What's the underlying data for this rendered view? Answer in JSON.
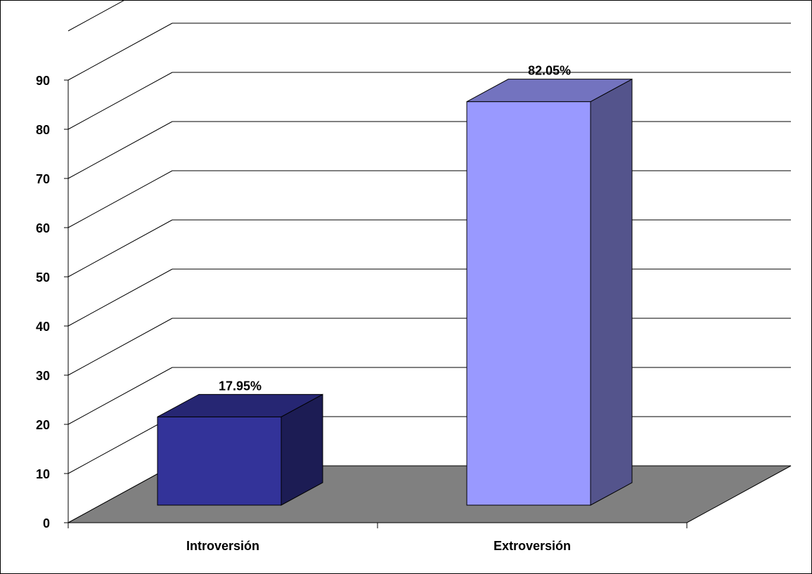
{
  "chart_data": {
    "type": "bar",
    "categories": [
      "Introversión",
      "Extroversión"
    ],
    "values": [
      17.95,
      82.05
    ],
    "data_labels": [
      "17.95%",
      "82.05%"
    ],
    "y_ticks": [
      "0",
      "10",
      "20",
      "30",
      "40",
      "50",
      "60",
      "70",
      "80",
      "90"
    ],
    "ylim": [
      0,
      90
    ],
    "grid": true,
    "legend": "none",
    "style": "3d-column",
    "colors": {
      "bars": [
        "#333399",
        "#9999FF"
      ],
      "floor": "#808080",
      "border": "#000000"
    }
  }
}
